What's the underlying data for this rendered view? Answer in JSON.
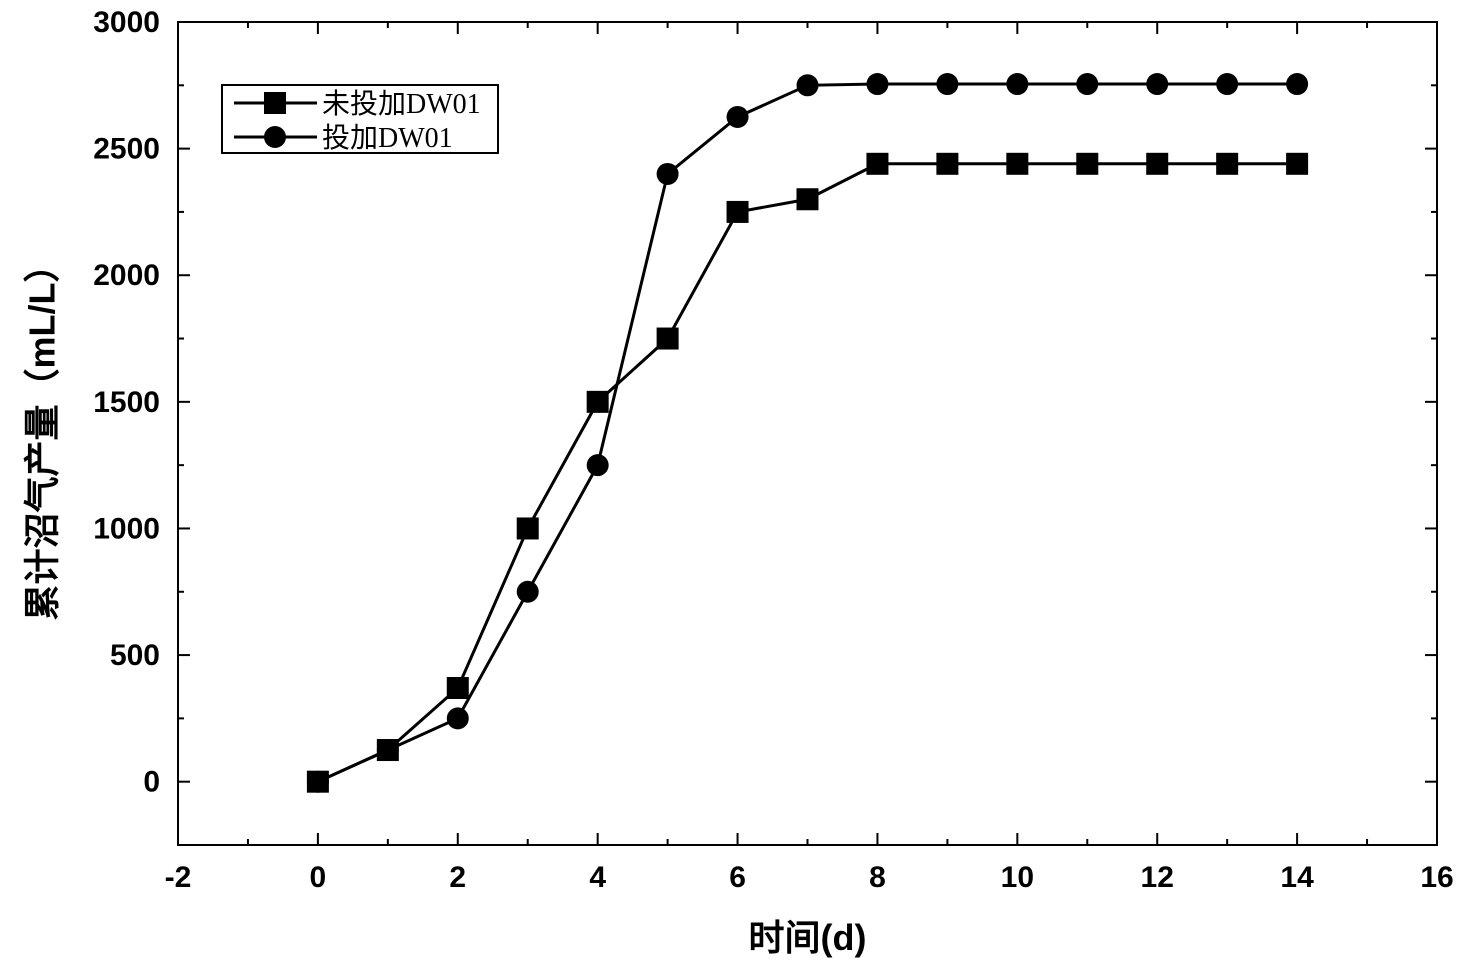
{
  "chart_data": {
    "type": "line",
    "xlabel": "时间(d)",
    "ylabel": "累计沼气产量（mL/L）",
    "xlim": [
      -2,
      16
    ],
    "ylim": [
      -250,
      3000
    ],
    "xticks": [
      -2,
      0,
      2,
      4,
      6,
      8,
      10,
      12,
      14,
      16
    ],
    "yticks": [
      0,
      500,
      1000,
      1500,
      2000,
      2500,
      3000
    ],
    "grid": false,
    "legend_position": "top-left",
    "x": [
      0,
      1,
      2,
      3,
      4,
      5,
      6,
      7,
      8,
      9,
      10,
      11,
      12,
      13,
      14
    ],
    "series": [
      {
        "name": "未投加DW01",
        "marker": "square",
        "color": "#000000",
        "values": [
          0,
          125,
          370,
          1000,
          1500,
          1750,
          2250,
          2300,
          2440,
          2440,
          2440,
          2440,
          2440,
          2440,
          2440
        ]
      },
      {
        "name": "投加DW01",
        "marker": "circle",
        "color": "#000000",
        "values": [
          0,
          125,
          250,
          750,
          1250,
          2400,
          2625,
          2750,
          2755,
          2755,
          2755,
          2755,
          2755,
          2755,
          2755
        ]
      }
    ]
  }
}
